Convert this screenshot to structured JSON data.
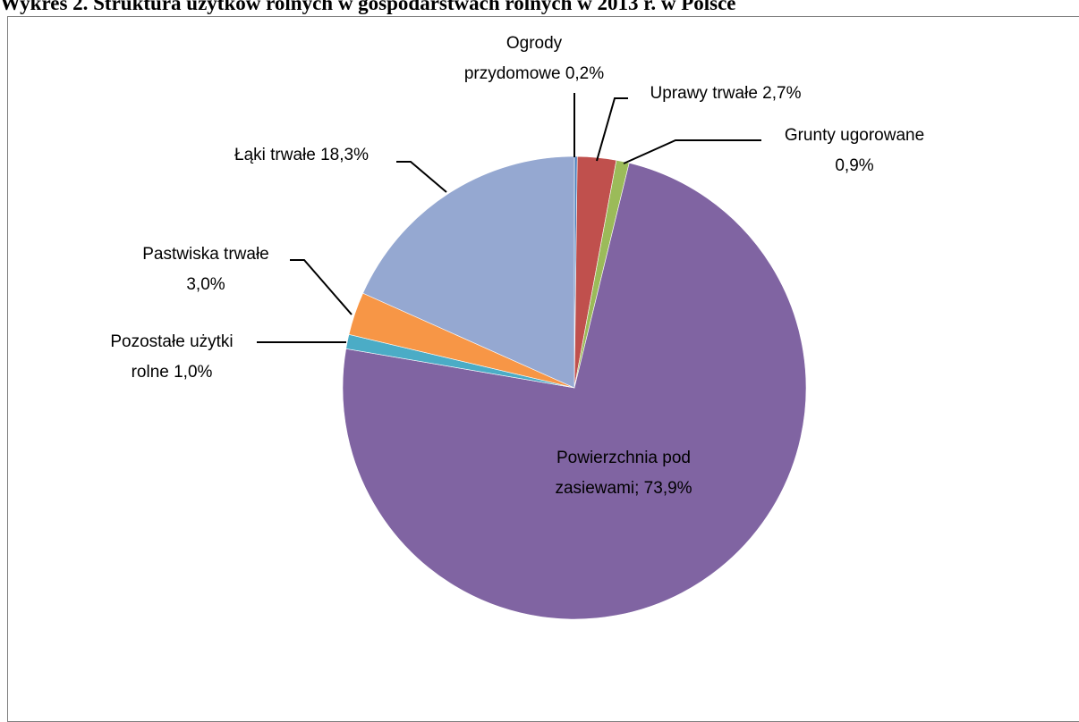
{
  "page_title": "Wykres 2. Struktura użytków rolnych w gospodarstwach rolnych w 2013 r. w Polsce",
  "chart_data": {
    "type": "pie",
    "title": "",
    "unit": "%",
    "slices": [
      {
        "label_lines": [
          "Ogrody",
          "przydomowe 0,2%"
        ],
        "value": 0.2,
        "color": "#4f81bd"
      },
      {
        "label_lines": [
          "Uprawy trwałe 2,7%"
        ],
        "value": 2.7,
        "color": "#c0504d"
      },
      {
        "label_lines": [
          "Grunty ugorowane",
          "0,9%"
        ],
        "value": 0.9,
        "color": "#9bbb59"
      },
      {
        "label_lines": [
          "Powierzchnia pod",
          "zasiewami; 73,9%"
        ],
        "value": 73.9,
        "color": "#8064a2"
      },
      {
        "label_lines": [
          "Pozostałe użytki",
          "rolne 1,0%"
        ],
        "value": 1.0,
        "color": "#4bacc6"
      },
      {
        "label_lines": [
          "Pastwiska trwałe",
          "3,0%"
        ],
        "value": 3.0,
        "color": "#f79646"
      },
      {
        "label_lines": [
          "Łąki trwałe 18,3%"
        ],
        "value": 18.3,
        "color": "#95a8d1"
      }
    ]
  }
}
